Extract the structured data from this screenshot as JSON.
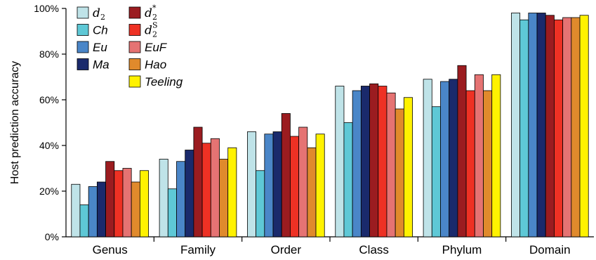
{
  "chart_data": {
    "type": "bar",
    "title": "",
    "xlabel": "",
    "ylabel": "Host prediction accuracy",
    "ylim": [
      0,
      100
    ],
    "yticks": [
      0,
      20,
      40,
      60,
      80,
      100
    ],
    "ytick_labels": [
      "0%",
      "20%",
      "40%",
      "60%",
      "80%",
      "100%"
    ],
    "grid": false,
    "legend_position": "top-left",
    "categories": [
      "Genus",
      "Family",
      "Order",
      "Class",
      "Phylum",
      "Domain"
    ],
    "series": [
      {
        "name": "d2",
        "label_base": "d",
        "label_sub": "2",
        "label_sup": "",
        "math": true,
        "color": "#bfe3e8",
        "values": [
          23,
          34,
          46,
          66,
          69,
          98
        ]
      },
      {
        "name": "Ch",
        "label_base": "Ch",
        "label_sub": "",
        "label_sup": "",
        "math": false,
        "color": "#5ec8d6",
        "values": [
          14,
          21,
          29,
          50,
          57,
          95
        ]
      },
      {
        "name": "Eu",
        "label_base": "Eu",
        "label_sub": "",
        "label_sup": "",
        "math": false,
        "color": "#4a86c8",
        "values": [
          22,
          33,
          45,
          64,
          68,
          98
        ]
      },
      {
        "name": "Ma",
        "label_base": "Ma",
        "label_sub": "",
        "label_sup": "",
        "math": false,
        "color": "#1a2a6c",
        "values": [
          24,
          38,
          46,
          66,
          69,
          98
        ]
      },
      {
        "name": "d2*",
        "label_base": "d",
        "label_sub": "2",
        "label_sup": "*",
        "math": true,
        "color": "#9b1c20",
        "values": [
          33,
          48,
          54,
          67,
          75,
          97
        ]
      },
      {
        "name": "d2S",
        "label_base": "d",
        "label_sub": "2",
        "label_sup": "S",
        "math": true,
        "color": "#ee3124",
        "values": [
          29,
          41,
          44,
          66,
          64,
          95
        ]
      },
      {
        "name": "EuF",
        "label_base": "EuF",
        "label_sub": "",
        "label_sup": "",
        "math": false,
        "color": "#e57373",
        "values": [
          30,
          43,
          48,
          63,
          71,
          96
        ]
      },
      {
        "name": "Hao",
        "label_base": "Hao",
        "label_sub": "",
        "label_sup": "",
        "math": false,
        "color": "#e08a2c",
        "values": [
          24,
          34,
          39,
          56,
          64,
          96
        ]
      },
      {
        "name": "Teeling",
        "label_base": "Teeling",
        "label_sub": "",
        "label_sup": "",
        "math": false,
        "color": "#fff200",
        "values": [
          29,
          39,
          45,
          61,
          71,
          97
        ]
      }
    ]
  }
}
